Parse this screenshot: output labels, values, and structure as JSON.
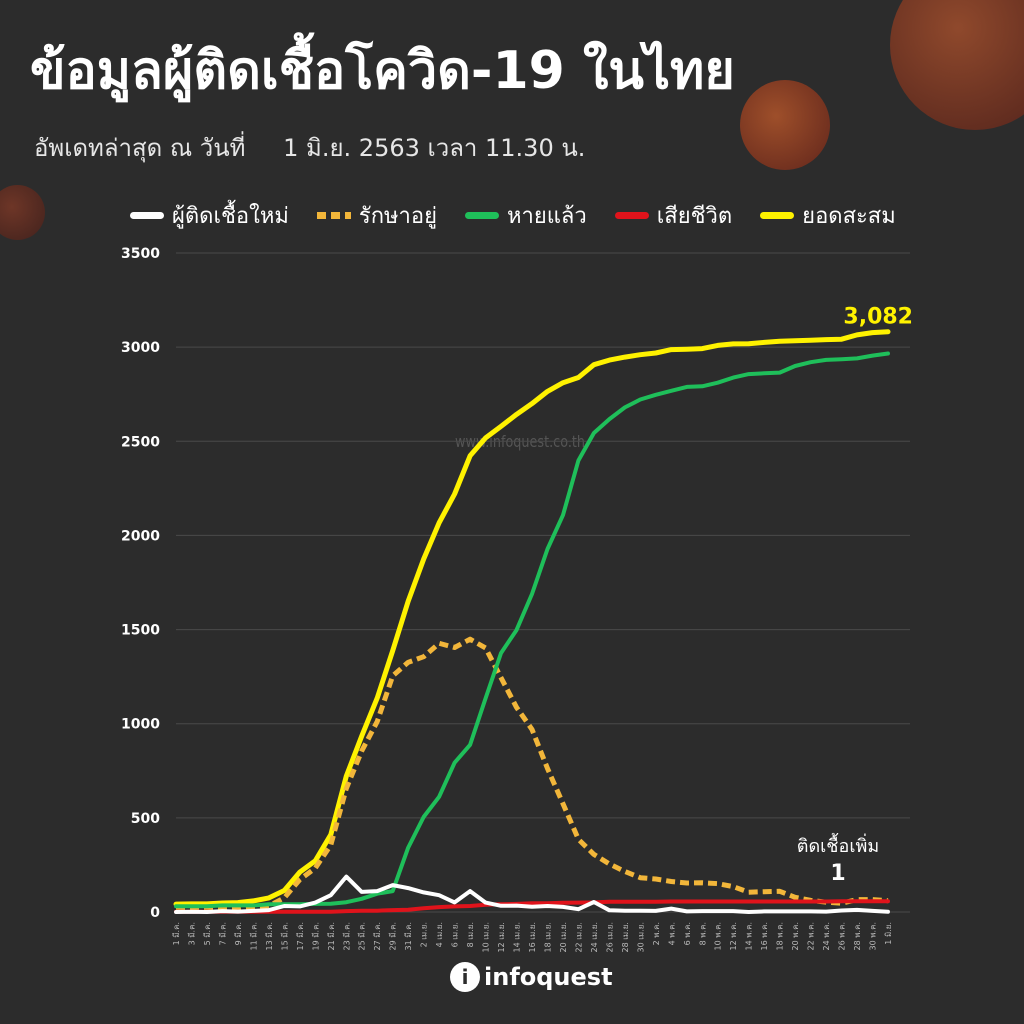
{
  "title": "ข้อมูลผู้ติดเชื้อโควิด-19 ในไทย",
  "subtitle": {
    "label": "อัพเดทล่าสุด ณ วันที่",
    "date": "1 มิ.ย. 2563 เวลา 11.30 น."
  },
  "legend": [
    {
      "label": "ผู้ติดเชื้อใหม่",
      "color": "#ffffff",
      "style": "solid"
    },
    {
      "label": "รักษาอยู่",
      "color": "#f2b63a",
      "style": "dashed"
    },
    {
      "label": "หายแล้ว",
      "color": "#1fbf5a",
      "style": "solid"
    },
    {
      "label": "เสียชีวิต",
      "color": "#e0131b",
      "style": "solid"
    },
    {
      "label": "ยอดสะสม",
      "color": "#fff200",
      "style": "solid"
    }
  ],
  "watermark": "www.infoquest.co.th",
  "logo": {
    "mark": "i",
    "name": "infoquest"
  },
  "chart_data": {
    "type": "line",
    "ylim": [
      0,
      3500
    ],
    "yticks": [
      0,
      500,
      1000,
      1500,
      2000,
      2500,
      3000,
      3500
    ],
    "grid": true,
    "legend_position": "top",
    "x": [
      "1 มี.ค.",
      "3 มี.ค.",
      "5 มี.ค.",
      "7 มี.ค.",
      "9 มี.ค.",
      "11 มี.ค.",
      "13 มี.ค.",
      "15 มี.ค.",
      "17 มี.ค.",
      "19 มี.ค.",
      "21 มี.ค.",
      "23 มี.ค.",
      "25 มี.ค.",
      "27 มี.ค.",
      "29 มี.ค.",
      "31 มี.ค.",
      "2 เม.ย.",
      "4 เม.ย.",
      "6 เม.ย.",
      "8 เม.ย.",
      "10 เม.ย.",
      "12 เม.ย.",
      "14 เม.ย.",
      "16 เม.ย.",
      "18 เม.ย.",
      "20 เม.ย.",
      "22 เม.ย.",
      "24 เม.ย.",
      "26 เม.ย.",
      "28 เม.ย.",
      "30 เม.ย.",
      "2 พ.ค.",
      "4 พ.ค.",
      "6 พ.ค.",
      "8 พ.ค.",
      "10 พ.ค.",
      "12 พ.ค.",
      "14 พ.ค.",
      "16 พ.ค.",
      "18 พ.ค.",
      "20 พ.ค.",
      "22 พ.ค.",
      "24 พ.ค.",
      "26 พ.ค.",
      "28 พ.ค.",
      "30 พ.ค.",
      "1 มิ.ย."
    ],
    "series": [
      {
        "name": "ยอดสะสม",
        "color": "#fff200",
        "width": 5,
        "values": [
          42,
          43,
          43,
          48,
          50,
          59,
          75,
          114,
          212,
          272,
          411,
          721,
          934,
          1136,
          1388,
          1651,
          1875,
          2067,
          2220,
          2423,
          2518,
          2579,
          2643,
          2700,
          2765,
          2811,
          2839,
          2907,
          2931,
          2947,
          2960,
          2969,
          2987,
          2989,
          2992,
          3009,
          3017,
          3018,
          3025,
          3031,
          3034,
          3037,
          3040,
          3042,
          3065,
          3077,
          3082
        ]
      },
      {
        "name": "รักษาอยู่",
        "color": "#f2b63a",
        "width": 5,
        "dash": "9 5",
        "values": [
          11,
          12,
          12,
          12,
          15,
          23,
          33,
          75,
          172,
          233,
          356,
          656,
          855,
          1011,
          1254,
          1326,
          1356,
          1427,
          1405,
          1449,
          1402,
          1245,
          1087,
          970,
          762,
          575,
          386,
          306,
          255,
          215,
          182,
          175,
          162,
          154,
          155,
          151,
          135,
          105,
          108,
          110,
          78,
          62,
          52,
          47,
          66,
          66,
          60
        ]
      },
      {
        "name": "หายแล้ว",
        "color": "#1fbf5a",
        "width": 4,
        "values": [
          31,
          31,
          31,
          35,
          35,
          35,
          41,
          41,
          41,
          43,
          44,
          52,
          70,
          97,
          111,
          342,
          505,
          612,
          793,
          888,
          1135,
          1375,
          1497,
          1689,
          1928,
          2108,
          2398,
          2544,
          2618,
          2680,
          2722,
          2747,
          2768,
          2789,
          2792,
          2811,
          2838,
          2857,
          2861,
          2865,
          2900,
          2920,
          2932,
          2936,
          2940,
          2955,
          2966
        ]
      },
      {
        "name": "เสียชีวิต",
        "color": "#e0131b",
        "width": 4,
        "values": [
          1,
          1,
          1,
          1,
          1,
          1,
          1,
          1,
          1,
          1,
          1,
          5,
          7,
          7,
          10,
          12,
          20,
          26,
          30,
          32,
          38,
          41,
          43,
          46,
          47,
          49,
          50,
          51,
          54,
          54,
          54,
          54,
          56,
          56,
          56,
          56,
          56,
          56,
          56,
          56,
          56,
          56,
          56,
          57,
          57,
          57,
          57
        ]
      },
      {
        "name": "ผู้ติดเชื้อใหม่",
        "color": "#ffffff",
        "width": 4,
        "values": [
          0,
          1,
          0,
          5,
          2,
          6,
          10,
          32,
          30,
          50,
          89,
          188,
          107,
          111,
          143,
          127,
          104,
          89,
          51,
          111,
          50,
          33,
          34,
          28,
          32,
          27,
          15,
          53,
          9,
          7,
          7,
          6,
          18,
          3,
          5,
          5,
          5,
          0,
          3,
          3,
          3,
          3,
          2,
          8,
          11,
          6,
          1
        ]
      }
    ],
    "annotations": [
      {
        "text": "3,082",
        "series": "ยอดสะสม",
        "color": "#fff200"
      },
      {
        "text": "ติดเชื้อเพิ่ม",
        "color": "#ffffff"
      },
      {
        "text": "1",
        "color": "#ffffff"
      }
    ]
  }
}
